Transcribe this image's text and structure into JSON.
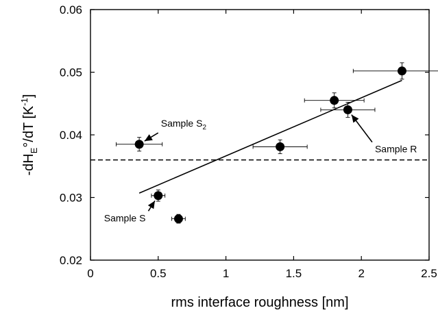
{
  "chart_data": {
    "type": "scatter",
    "xlabel": "rms interface roughness [nm]",
    "ylabel": {
      "text": "-dH",
      "sub": "E",
      "rest": "°/dT [K",
      "sup": "-1",
      "end": "]"
    },
    "xlim": [
      0,
      2.5
    ],
    "ylim": [
      0.02,
      0.06
    ],
    "xticks": [
      0,
      0.5,
      1,
      1.5,
      2,
      2.5
    ],
    "xtick_labels": [
      "0",
      "0.5",
      "1",
      "1.5",
      "2",
      "2.5"
    ],
    "yticks": [
      0.02,
      0.03,
      0.04,
      0.05,
      0.06
    ],
    "ytick_labels": [
      "0.02",
      "0.03",
      "0.04",
      "0.05",
      "0.06"
    ],
    "grid": false,
    "points": [
      {
        "x": 0.36,
        "y": 0.0385,
        "xerr": 0.17,
        "yerr": 0.0011
      },
      {
        "x": 0.5,
        "y": 0.0303,
        "xerr": 0.05,
        "yerr": 0.0009
      },
      {
        "x": 0.65,
        "y": 0.0266,
        "xerr": 0.05,
        "yerr": 0.0007
      },
      {
        "x": 1.4,
        "y": 0.0381,
        "xerr": 0.2,
        "yerr": 0.0011
      },
      {
        "x": 1.8,
        "y": 0.0455,
        "xerr": 0.22,
        "yerr": 0.0012
      },
      {
        "x": 1.9,
        "y": 0.044,
        "xerr": 0.2,
        "yerr": 0.0012
      },
      {
        "x": 2.3,
        "y": 0.0502,
        "xerr": 0.36,
        "yerr": 0.0013
      }
    ],
    "fit_line": {
      "x": [
        0.36,
        2.3
      ],
      "y": [
        0.0307,
        0.0487
      ],
      "style": "solid"
    },
    "reference_line": {
      "y": 0.036,
      "style": "dashed"
    },
    "annotations": [
      {
        "label": "Sample S",
        "sub": "2",
        "target": [
          0.36,
          0.0385
        ],
        "text_at": [
          0.52,
          0.0413
        ]
      },
      {
        "label": "Sample R",
        "sub": "",
        "target": [
          1.9,
          0.044
        ],
        "text_at": [
          2.1,
          0.0372
        ]
      },
      {
        "label": "Sample S",
        "sub": "",
        "target": [
          0.5,
          0.0303
        ],
        "text_at": [
          0.1,
          0.0262
        ]
      }
    ],
    "colors": {
      "marker": "#000000",
      "line": "#000000",
      "background": "#ffffff"
    }
  }
}
